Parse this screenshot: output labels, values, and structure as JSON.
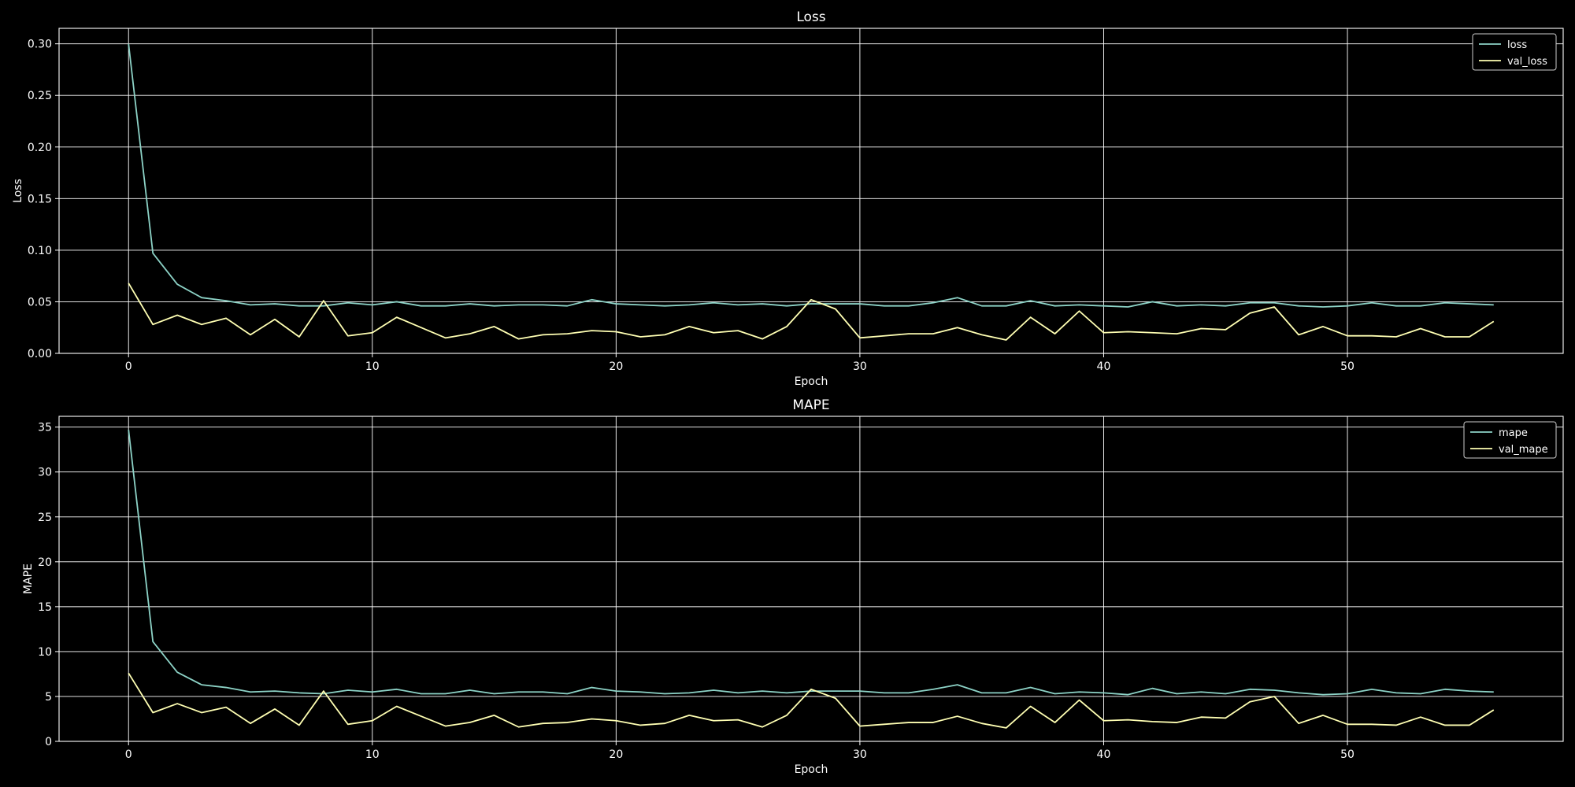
{
  "chart_data": [
    {
      "type": "line",
      "title": "Loss",
      "xlabel": "Epoch",
      "ylabel": "Loss",
      "xlim": [
        -2.85,
        58.85
      ],
      "ylim": [
        0.0,
        0.315
      ],
      "xticks": [
        0,
        10,
        20,
        30,
        40,
        50
      ],
      "yticks": [
        0.0,
        0.05,
        0.1,
        0.15,
        0.2,
        0.25,
        0.3
      ],
      "ytick_format": 2,
      "grid": true,
      "legend_position": "top-right",
      "x": [
        0,
        1,
        2,
        3,
        4,
        5,
        6,
        7,
        8,
        9,
        10,
        11,
        12,
        13,
        14,
        15,
        16,
        17,
        18,
        19,
        20,
        21,
        22,
        23,
        24,
        25,
        26,
        27,
        28,
        29,
        30,
        31,
        32,
        33,
        34,
        35,
        36,
        37,
        38,
        39,
        40,
        41,
        42,
        43,
        44,
        45,
        46,
        47,
        48,
        49,
        50,
        51,
        52,
        53,
        54,
        55,
        56
      ],
      "series": [
        {
          "name": "loss",
          "color": "#8dd3c7",
          "values": [
            0.3,
            0.097,
            0.067,
            0.054,
            0.051,
            0.047,
            0.048,
            0.046,
            0.046,
            0.049,
            0.047,
            0.05,
            0.046,
            0.046,
            0.048,
            0.046,
            0.047,
            0.047,
            0.046,
            0.052,
            0.048,
            0.047,
            0.046,
            0.047,
            0.049,
            0.047,
            0.048,
            0.046,
            0.048,
            0.048,
            0.048,
            0.046,
            0.046,
            0.049,
            0.054,
            0.046,
            0.046,
            0.051,
            0.046,
            0.047,
            0.046,
            0.045,
            0.05,
            0.046,
            0.047,
            0.046,
            0.049,
            0.049,
            0.046,
            0.045,
            0.046,
            0.049,
            0.046,
            0.046,
            0.049,
            0.048,
            0.047
          ]
        },
        {
          "name": "val_loss",
          "color": "#ffffb3",
          "values": [
            0.068,
            0.028,
            0.037,
            0.028,
            0.034,
            0.018,
            0.033,
            0.016,
            0.051,
            0.017,
            0.02,
            0.035,
            0.025,
            0.015,
            0.019,
            0.026,
            0.014,
            0.018,
            0.019,
            0.022,
            0.021,
            0.016,
            0.018,
            0.026,
            0.02,
            0.022,
            0.014,
            0.026,
            0.052,
            0.043,
            0.015,
            0.017,
            0.019,
            0.019,
            0.025,
            0.018,
            0.013,
            0.035,
            0.019,
            0.041,
            0.02,
            0.021,
            0.02,
            0.019,
            0.024,
            0.023,
            0.039,
            0.045,
            0.018,
            0.026,
            0.017,
            0.017,
            0.016,
            0.024,
            0.016,
            0.016,
            0.031
          ]
        }
      ]
    },
    {
      "type": "line",
      "title": "MAPE",
      "xlabel": "Epoch",
      "ylabel": "MAPE",
      "xlim": [
        -2.85,
        58.85
      ],
      "ylim": [
        0.0,
        36.2
      ],
      "xticks": [
        0,
        10,
        20,
        30,
        40,
        50
      ],
      "yticks": [
        0,
        5,
        10,
        15,
        20,
        25,
        30,
        35
      ],
      "ytick_format": 0,
      "grid": true,
      "legend_position": "top-right",
      "x": [
        0,
        1,
        2,
        3,
        4,
        5,
        6,
        7,
        8,
        9,
        10,
        11,
        12,
        13,
        14,
        15,
        16,
        17,
        18,
        19,
        20,
        21,
        22,
        23,
        24,
        25,
        26,
        27,
        28,
        29,
        30,
        31,
        32,
        33,
        34,
        35,
        36,
        37,
        38,
        39,
        40,
        41,
        42,
        43,
        44,
        45,
        46,
        47,
        48,
        49,
        50,
        51,
        52,
        53,
        54,
        55,
        56
      ],
      "series": [
        {
          "name": "mape",
          "color": "#8dd3c7",
          "values": [
            34.7,
            11.1,
            7.7,
            6.3,
            6.0,
            5.5,
            5.6,
            5.4,
            5.3,
            5.7,
            5.5,
            5.8,
            5.3,
            5.3,
            5.7,
            5.3,
            5.5,
            5.5,
            5.3,
            6.0,
            5.6,
            5.5,
            5.3,
            5.4,
            5.7,
            5.4,
            5.6,
            5.4,
            5.6,
            5.6,
            5.6,
            5.4,
            5.4,
            5.8,
            6.3,
            5.4,
            5.4,
            6.0,
            5.3,
            5.5,
            5.4,
            5.2,
            5.9,
            5.3,
            5.5,
            5.3,
            5.8,
            5.7,
            5.4,
            5.2,
            5.3,
            5.8,
            5.4,
            5.3,
            5.8,
            5.6,
            5.5
          ]
        },
        {
          "name": "val_mape",
          "color": "#ffffb3",
          "values": [
            7.6,
            3.2,
            4.2,
            3.2,
            3.8,
            2.0,
            3.6,
            1.8,
            5.6,
            1.9,
            2.3,
            3.9,
            2.8,
            1.7,
            2.1,
            2.9,
            1.6,
            2.0,
            2.1,
            2.5,
            2.3,
            1.8,
            2.0,
            2.9,
            2.3,
            2.4,
            1.6,
            2.9,
            5.8,
            4.8,
            1.7,
            1.9,
            2.1,
            2.1,
            2.8,
            2.0,
            1.5,
            3.9,
            2.1,
            4.6,
            2.3,
            2.4,
            2.2,
            2.1,
            2.7,
            2.6,
            4.4,
            5.0,
            2.0,
            2.9,
            1.9,
            1.9,
            1.8,
            2.7,
            1.8,
            1.8,
            3.5
          ]
        }
      ]
    }
  ]
}
